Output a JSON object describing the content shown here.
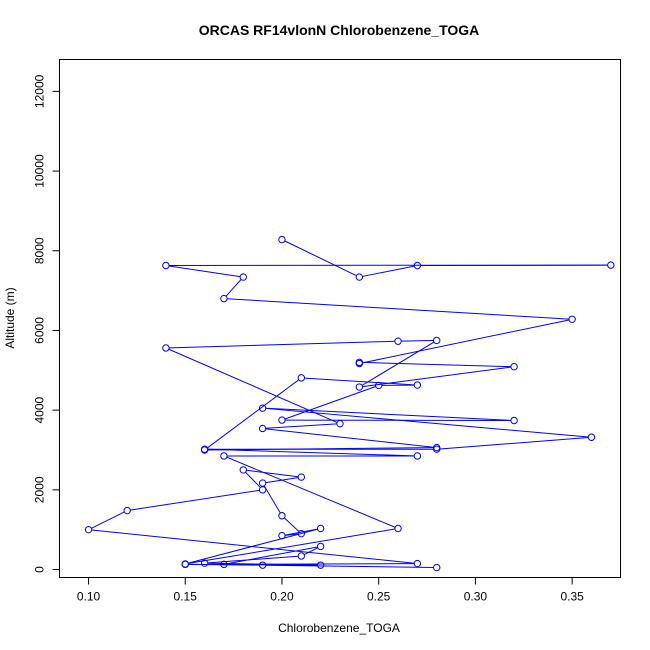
{
  "chart_data": {
    "type": "line",
    "title": "ORCAS RF14vlonN Chlorobenzene_TOGA",
    "xlabel": "Chlorobenzene_TOGA",
    "ylabel": "Altitude (m)",
    "xlim": [
      0.085,
      0.375
    ],
    "ylim": [
      -200,
      12800
    ],
    "x_ticks": [
      0.1,
      0.15,
      0.2,
      0.25,
      0.3,
      0.35
    ],
    "x_tick_labels": [
      "0.10",
      "0.15",
      "0.20",
      "0.25",
      "0.30",
      "0.35"
    ],
    "y_ticks": [
      0,
      2000,
      4000,
      6000,
      8000,
      10000,
      12000
    ],
    "y_tick_labels": [
      "0",
      "2000",
      "4000",
      "6000",
      "8000",
      "10000",
      "12000"
    ],
    "grid": false,
    "series": [
      {
        "color": "#0000ff",
        "marker": "open-circle",
        "x": [
          0.28,
          0.19,
          0.15,
          0.22,
          0.16,
          0.21,
          0.22,
          0.17,
          0.27,
          0.1,
          0.12,
          0.19,
          0.18,
          0.21,
          0.19,
          0.2,
          0.21,
          0.2,
          0.22,
          0.15,
          0.26,
          0.17,
          0.27,
          0.16,
          0.28,
          0.36,
          0.19,
          0.32,
          0.2,
          0.25,
          0.27,
          0.21,
          0.16,
          0.28,
          0.19,
          0.23,
          0.14,
          0.26,
          0.28,
          0.24,
          0.32,
          0.24,
          0.24,
          0.35,
          0.17,
          0.18,
          0.14,
          0.37,
          0.27,
          0.24,
          0.2
        ],
        "y": [
          50,
          110,
          130,
          110,
          160,
          340,
          580,
          130,
          150,
          1000,
          1480,
          2000,
          2500,
          2320,
          2170,
          1350,
          900,
          850,
          1030,
          140,
          1030,
          2850,
          2850,
          3020,
          3020,
          3320,
          4050,
          3740,
          3750,
          4620,
          4630,
          4810,
          3000,
          3060,
          3540,
          3660,
          5560,
          5730,
          5750,
          4580,
          5090,
          5200,
          5170,
          6280,
          6800,
          7340,
          7630,
          7640,
          7630,
          7340,
          8280
        ]
      }
    ]
  }
}
